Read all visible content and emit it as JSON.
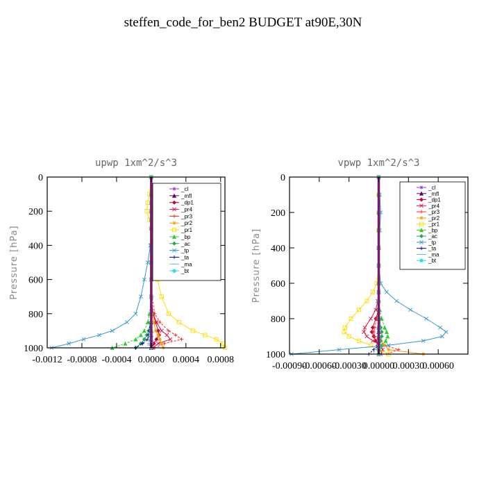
{
  "title": "steffen_code_for_ben2  BUDGET at90E,30N",
  "chart_data": [
    {
      "type": "line",
      "title": "upwp   1xm^2/s^3",
      "xlabel": "",
      "ylabel": "Pressure [hPa]",
      "xlim": [
        -0.0012,
        0.00085
      ],
      "ylim": [
        1000,
        0
      ],
      "y_inverted": true,
      "xticks": [
        -0.0012,
        -0.0008,
        -0.0004,
        0.0,
        0.0004,
        0.0008
      ],
      "xtick_labels": [
        "-0.0012",
        "-0.0008",
        "-0.0004",
        "0.0000",
        "0.0004",
        "0.0008"
      ],
      "yticks": [
        0,
        200,
        400,
        600,
        800,
        1000
      ],
      "ytick_labels": [
        "0",
        "200",
        "400",
        "600",
        "800",
        "1000"
      ],
      "legend_position": "top-right",
      "y": [
        0,
        100,
        150,
        200,
        250,
        300,
        400,
        500,
        600,
        700,
        800,
        850,
        900,
        925,
        950,
        975,
        1000
      ],
      "series": [
        {
          "name": "_cl",
          "color": "#9933cc",
          "marker": "star",
          "values": [
            0,
            0,
            0,
            0,
            0,
            0,
            0,
            0,
            0,
            0,
            0,
            0,
            0,
            0,
            0,
            0,
            0
          ]
        },
        {
          "name": "_mfl",
          "color": "#660066",
          "marker": "triangle",
          "values": [
            0,
            0,
            0,
            0,
            0,
            0,
            0,
            0,
            0,
            0,
            0,
            0,
            0,
            0,
            0,
            0,
            0
          ]
        },
        {
          "name": "_dp1",
          "color": "#cc0033",
          "marker": "diamond",
          "values": [
            0,
            0,
            0,
            0,
            0,
            0,
            0,
            0,
            0,
            0,
            2e-05,
            5e-05,
            8e-05,
            9e-05,
            6e-05,
            3e-05,
            1e-05
          ]
        },
        {
          "name": "_pr4",
          "color": "#dd1144",
          "marker": "x",
          "values": [
            0,
            0,
            0,
            0,
            0,
            0,
            0,
            0,
            0,
            0,
            2e-05,
            6e-05,
            0.00012,
            0.00018,
            0.00022,
            8e-05,
            2e-05
          ]
        },
        {
          "name": "_pr3",
          "color": "#ff2222",
          "marker": "plus",
          "values": [
            0,
            0,
            1e-05,
            2e-05,
            1e-05,
            0,
            0,
            0,
            0,
            1e-05,
            4e-05,
            0.0001,
            0.0002,
            0.00028,
            0.00035,
            0.00015,
            4e-05
          ]
        },
        {
          "name": "_pr2",
          "color": "#ff9900",
          "marker": "star",
          "values": [
            0,
            0,
            0,
            0,
            0,
            0,
            0,
            0,
            0,
            0,
            1e-05,
            3e-05,
            5e-05,
            8e-05,
            0.0001,
            0.00012,
            0.00014
          ]
        },
        {
          "name": "_pr1",
          "color": "#ffdd00",
          "marker": "square",
          "values": [
            0,
            -2e-05,
            -4e-05,
            -5e-05,
            -2e-05,
            0,
            2e-05,
            4e-05,
            7e-05,
            0.00012,
            0.0002,
            0.00032,
            0.00048,
            0.00062,
            0.00075,
            0.00083,
            0.00085
          ]
        },
        {
          "name": "_bp",
          "color": "#33cc33",
          "marker": "triangle",
          "values": [
            0,
            0,
            0,
            0,
            0,
            0,
            0,
            0,
            0,
            0,
            -2e-05,
            -4e-05,
            -8e-05,
            -0.00012,
            -0.00018,
            -0.0003,
            -0.00045
          ]
        },
        {
          "name": "_ac",
          "color": "#22aa55",
          "marker": "diamond",
          "values": [
            0,
            0,
            0,
            0,
            0,
            0,
            0,
            0,
            0,
            0,
            0,
            -1e-05,
            -3e-05,
            -5e-05,
            -8e-05,
            -0.00012,
            -0.00018
          ]
        },
        {
          "name": "_tp",
          "color": "#3399cc",
          "marker": "x",
          "values": [
            0,
            1e-05,
            3e-05,
            6e-05,
            3e-05,
            1e-05,
            -1e-05,
            -4e-05,
            -8e-05,
            -0.00012,
            -0.00018,
            -0.00028,
            -0.00045,
            -0.0006,
            -0.00078,
            -0.00095,
            -0.00115
          ]
        },
        {
          "name": "_ta",
          "color": "#000099",
          "marker": "plus",
          "values": [
            0,
            0,
            0,
            0,
            0,
            0,
            0,
            0,
            0,
            0,
            0,
            -1e-05,
            -2e-05,
            -3e-05,
            -4e-05,
            -0.0001,
            -0.00018
          ]
        },
        {
          "name": "_ma",
          "color": "#66bbee",
          "marker": "dash",
          "values": [
            0,
            0,
            0,
            0,
            0,
            0,
            0,
            0,
            0,
            0,
            0,
            0,
            0,
            -1e-05,
            -2e-05,
            -3e-05,
            -5e-05
          ]
        },
        {
          "name": "_bt",
          "color": "#33dddd",
          "marker": "circle",
          "values": [
            0,
            0,
            0,
            0,
            0,
            0,
            0,
            0,
            0,
            0,
            0,
            0,
            0,
            0,
            0,
            0,
            0
          ]
        }
      ]
    },
    {
      "type": "line",
      "title": "vpwp   1xm^2/s^3",
      "xlabel": "",
      "ylabel": "Pressure [hPa]",
      "xlim": [
        -0.0009,
        0.0009
      ],
      "ylim": [
        1000,
        0
      ],
      "y_inverted": true,
      "xticks": [
        -0.0009,
        -0.0006,
        -0.0003,
        0.0,
        0.0003,
        0.0006
      ],
      "xtick_labels": [
        "-0.00090",
        "-0.00060",
        "-0.00030",
        "0.00000",
        "0.00030",
        "0.00060"
      ],
      "yticks": [
        0,
        200,
        400,
        600,
        800,
        1000
      ],
      "ytick_labels": [
        "0",
        "200",
        "400",
        "600",
        "800",
        "1000"
      ],
      "legend_position": "top-right",
      "y": [
        0,
        100,
        200,
        300,
        400,
        500,
        600,
        650,
        700,
        750,
        800,
        850,
        875,
        900,
        925,
        950,
        975,
        1000
      ],
      "series": [
        {
          "name": "_cl",
          "color": "#9933cc",
          "marker": "star",
          "values": [
            0,
            0,
            0,
            0,
            0,
            0,
            0,
            0,
            0,
            0,
            0,
            0,
            0,
            0,
            0,
            0,
            0,
            0
          ]
        },
        {
          "name": "_mfl",
          "color": "#660066",
          "marker": "triangle",
          "values": [
            0,
            0,
            0,
            0,
            0,
            0,
            0,
            0,
            0,
            0,
            0,
            0,
            0,
            0,
            0,
            0,
            0,
            0
          ]
        },
        {
          "name": "_dp1",
          "color": "#cc0033",
          "marker": "diamond",
          "values": [
            0,
            0,
            0,
            0,
            0,
            0,
            0,
            0,
            0,
            0,
            -3e-05,
            -6e-05,
            -7e-05,
            -5e-05,
            -3e-05,
            -1e-05,
            0,
            0
          ]
        },
        {
          "name": "_pr4",
          "color": "#dd1144",
          "marker": "x",
          "values": [
            0,
            0,
            0,
            0,
            0,
            0,
            0,
            0,
            -1e-05,
            -3e-05,
            -8e-05,
            -0.00014,
            -0.00015,
            -0.00012,
            -6e-05,
            2e-05,
            4e-05,
            2e-05
          ]
        },
        {
          "name": "_pr3",
          "color": "#ff2222",
          "marker": "plus",
          "values": [
            0,
            0,
            0,
            0,
            0,
            0,
            0,
            0,
            0,
            -1e-05,
            -2e-05,
            -4e-05,
            -5e-05,
            -4e-05,
            0,
            6e-05,
            0.0002,
            8e-05
          ]
        },
        {
          "name": "_pr2",
          "color": "#ff9900",
          "marker": "star",
          "values": [
            0,
            0,
            0,
            0,
            0,
            0,
            0,
            0,
            0,
            0,
            0,
            0,
            0,
            0,
            2e-05,
            6e-05,
            0.0001,
            0.00045
          ]
        },
        {
          "name": "_pr1",
          "color": "#ffdd00",
          "marker": "square",
          "values": [
            0,
            0,
            0,
            0,
            0,
            0,
            -2e-05,
            -6e-05,
            -0.00012,
            -0.0002,
            -0.00028,
            -0.00034,
            -0.00035,
            -0.0003,
            -0.0002,
            -8e-05,
            0,
            0.0001
          ]
        },
        {
          "name": "_bp",
          "color": "#33cc33",
          "marker": "triangle",
          "values": [
            0,
            0,
            0,
            0,
            0,
            0,
            0,
            0,
            0,
            1e-05,
            3e-05,
            6e-05,
            8e-05,
            9e-05,
            7e-05,
            3e-05,
            1e-05,
            0
          ]
        },
        {
          "name": "_ac",
          "color": "#22aa55",
          "marker": "diamond",
          "values": [
            0,
            0,
            0,
            0,
            0,
            0,
            0,
            0,
            0,
            0,
            1e-05,
            2e-05,
            3e-05,
            3e-05,
            2e-05,
            1e-05,
            0,
            0
          ]
        },
        {
          "name": "_tp",
          "color": "#3399cc",
          "marker": "x",
          "values": [
            0,
            1e-05,
            2e-05,
            1e-05,
            0,
            0,
            2e-05,
            8e-05,
            0.00018,
            0.00032,
            0.00048,
            0.00062,
            0.00068,
            0.00064,
            0.00045,
            0.0001,
            -0.0004,
            -0.00088
          ]
        },
        {
          "name": "_ta",
          "color": "#000099",
          "marker": "plus",
          "values": [
            0,
            0,
            0,
            0,
            0,
            0,
            0,
            0,
            0,
            0,
            0,
            0,
            0,
            0,
            0,
            0,
            -5e-05,
            -0.0001
          ]
        },
        {
          "name": "_ma",
          "color": "#66bbee",
          "marker": "dash",
          "values": [
            0,
            0,
            0,
            0,
            0,
            0,
            0,
            0,
            0,
            0,
            0,
            0,
            0,
            0,
            0,
            0,
            -3e-05,
            -6e-05
          ]
        },
        {
          "name": "_bt",
          "color": "#33dddd",
          "marker": "circle",
          "values": [
            0,
            0,
            0,
            0,
            0,
            0,
            0,
            0,
            0,
            0,
            0,
            0,
            0,
            0,
            0,
            0,
            0,
            0
          ]
        }
      ]
    }
  ]
}
